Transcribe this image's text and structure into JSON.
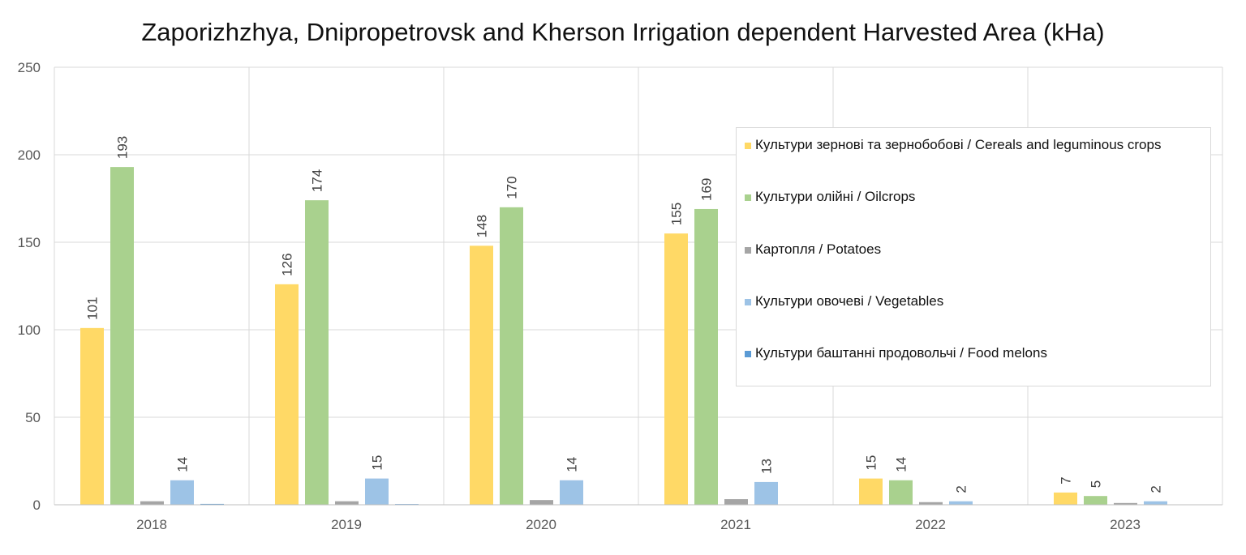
{
  "chart_data": {
    "type": "bar",
    "title": "Zaporizhzhya, Dnipropetrovsk and Kherson Irrigation dependent Harvested Area (kHa)",
    "categories": [
      "2018",
      "2019",
      "2020",
      "2021",
      "2022",
      "2023"
    ],
    "ylim": [
      0,
      250
    ],
    "yticks": [
      "0",
      "50",
      "100",
      "150",
      "200",
      "250"
    ],
    "grid": true,
    "legend_position": "right",
    "series": [
      {
        "name": "Культури зернові та зернобобові / Cereals and leguminous crops",
        "color": "#FFD966",
        "values": [
          101,
          126,
          148,
          155,
          15,
          7
        ],
        "labels": [
          "101",
          "126",
          "148",
          "155",
          "15",
          "7"
        ]
      },
      {
        "name": "Культури олійні / Oilcrops",
        "color": "#A9D18E",
        "values": [
          193,
          174,
          170,
          169,
          14,
          5
        ],
        "labels": [
          "193",
          "174",
          "170",
          "169",
          "14",
          "5"
        ]
      },
      {
        "name": "Картопля / Potatoes",
        "color": "#A5A5A5",
        "values": [
          2,
          2,
          2.7,
          3.2,
          1.5,
          1
        ]
      },
      {
        "name": "Культури овочеві / Vegetables",
        "color": "#9DC3E6",
        "values": [
          14,
          15,
          14,
          13,
          2,
          2
        ],
        "labels": [
          "14",
          "15",
          "14",
          "13",
          "2",
          "2"
        ]
      },
      {
        "name": "Культури баштанні продовольчі / Food melons",
        "color": "#5B9BD5",
        "values": [
          0.5,
          0.4,
          0,
          0,
          0,
          0
        ]
      }
    ]
  }
}
